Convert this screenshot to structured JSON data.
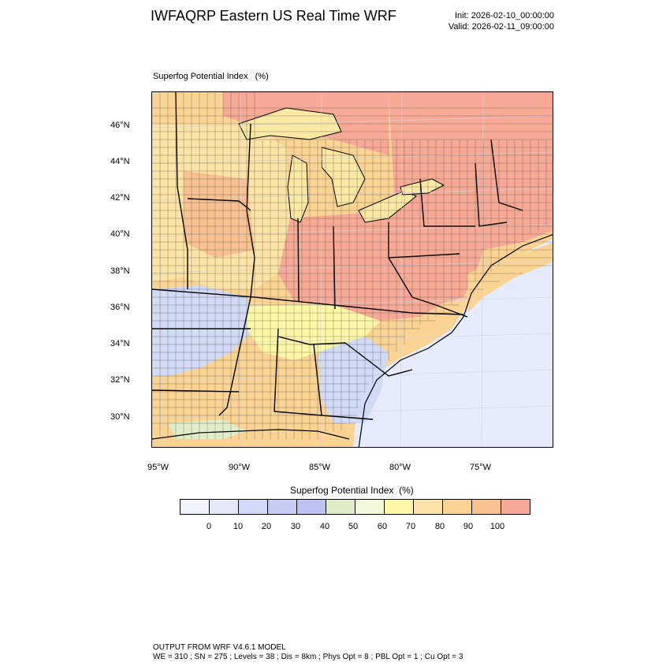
{
  "header": {
    "title": "IWFAQRP Eastern US Real Time WRF",
    "init": "Init: 2026-02-10_00:00:00",
    "valid": "Valid: 2026-02-11_09:00:00"
  },
  "field": {
    "label": "Superfog Potential Index   (%)"
  },
  "map": {
    "lat_labels": [
      "46°N",
      "44°N",
      "42°N",
      "40°N",
      "38°N",
      "36°N",
      "34°N",
      "32°N",
      "30°N"
    ],
    "lon_labels": [
      "95°W",
      "90°W",
      "85°W",
      "80°W",
      "75°W"
    ],
    "lake_color": "#f9e9a3",
    "ocean_color": "#e6ecfb"
  },
  "colorbar": {
    "title": "Superfog Potential Index  (%)",
    "ticks": [
      "0",
      "10",
      "20",
      "30",
      "40",
      "50",
      "60",
      "70",
      "80",
      "90",
      "100"
    ],
    "colors": [
      "#f1f3fb",
      "#e3e8f8",
      "#d1daf6",
      "#c4cdf3",
      "#bcc2f1",
      "#dfedc9",
      "#f3fadc",
      "#fdf8a6",
      "#fce4a6",
      "#fbd393",
      "#f9c18f",
      "#f7a996"
    ]
  },
  "footer": {
    "line1": "OUTPUT FROM WRF V4.6.1 MODEL",
    "line2": "WE = 310 ; SN = 275 ; Levels = 38 ; Dis = 8km ; Phys Opt = 8 ; PBL Opt = 1 ; Cu Opt = 3"
  }
}
